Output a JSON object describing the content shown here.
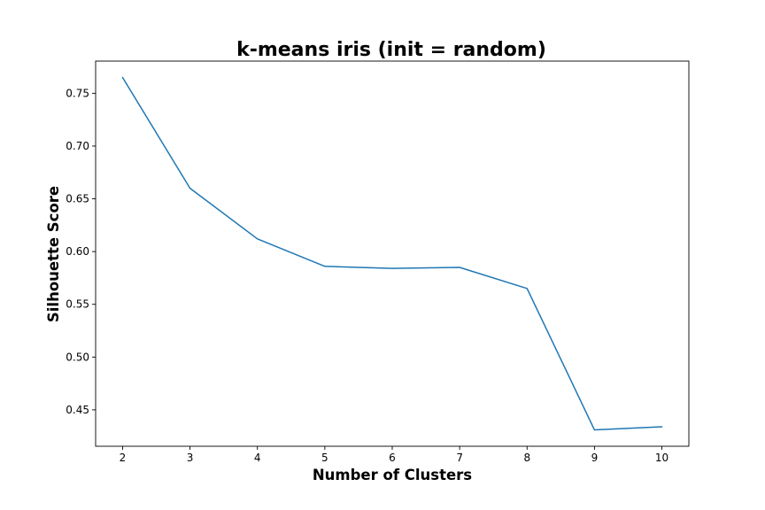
{
  "chart_data": {
    "type": "line",
    "title": "k-means iris (init = random)",
    "xlabel": "Number of Clusters",
    "ylabel": "Silhouette Score",
    "xlim": [
      1.6,
      10.4
    ],
    "ylim": [
      0.4155,
      0.7805
    ],
    "x_ticks": [
      2,
      3,
      4,
      5,
      6,
      7,
      8,
      9,
      10
    ],
    "x_tick_labels": [
      "2",
      "3",
      "4",
      "5",
      "6",
      "7",
      "8",
      "9",
      "10"
    ],
    "y_ticks": [
      0.45,
      0.5,
      0.55,
      0.6,
      0.65,
      0.7,
      0.75
    ],
    "y_tick_labels": [
      "0.45",
      "0.50",
      "0.55",
      "0.60",
      "0.65",
      "0.70",
      "0.75"
    ],
    "grid": false,
    "series": [
      {
        "color": "#1f77b4",
        "x": [
          2,
          3,
          4,
          5,
          6,
          7,
          8,
          9,
          10
        ],
        "values": [
          0.765,
          0.66,
          0.612,
          0.586,
          0.584,
          0.585,
          0.565,
          0.431,
          0.434
        ]
      }
    ]
  }
}
